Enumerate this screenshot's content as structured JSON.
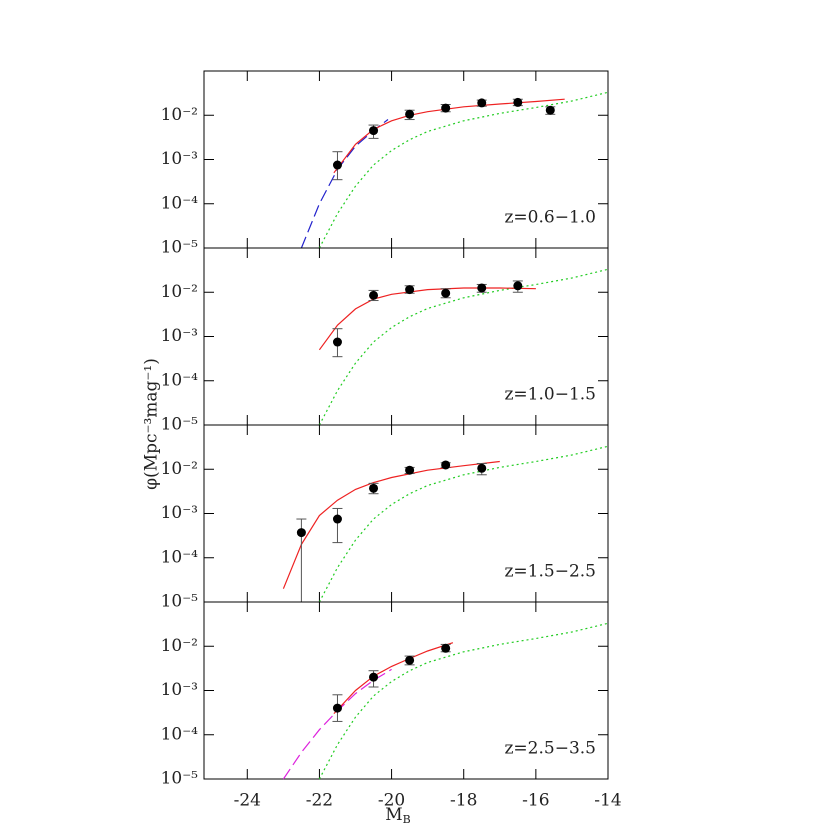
{
  "shared": {
    "ylabel": "φ(Mpc⁻³mag⁻¹)",
    "xlabel": {
      "text": "M",
      "subscript": "B"
    }
  },
  "chart_data": [
    {
      "type": "scatter",
      "annotation": "z=0.6−1.0",
      "yscale": "log",
      "xlim": [
        -25.2,
        -14
      ],
      "ylim": [
        1e-05,
        0.1
      ],
      "xticks": [
        -24,
        -22,
        -20,
        -18,
        -16,
        -14
      ],
      "show_xtick_labels": false,
      "yticks": [
        {
          "value": 1e-05,
          "label": "10⁻⁵"
        },
        {
          "value": 0.0001,
          "label": "10⁻⁴"
        },
        {
          "value": 0.001,
          "label": "10⁻³"
        },
        {
          "value": 0.01,
          "label": "10⁻²"
        }
      ],
      "series": [
        {
          "style": "dotted",
          "color": "#22cc22",
          "x": [
            -22,
            -21.5,
            -21,
            -20.5,
            -20,
            -19.5,
            -19,
            -18,
            -17,
            -16,
            -15,
            -14
          ],
          "y": [
            1e-05,
            6e-05,
            0.00025,
            0.00075,
            0.0016,
            0.0028,
            0.0043,
            0.0075,
            0.011,
            0.015,
            0.021,
            0.033
          ]
        },
        {
          "style": "dashed",
          "color": "#2222cc",
          "x": [
            -22.5,
            -22,
            -21.5,
            -21,
            -20.5,
            -20.1
          ],
          "y": [
            1e-05,
            0.0001,
            0.0006,
            0.002,
            0.0045,
            0.008
          ]
        },
        {
          "style": "solid",
          "color": "#ee2222",
          "x": [
            -21.6,
            -21,
            -20.5,
            -20,
            -19.5,
            -19,
            -18,
            -17,
            -16,
            -15.2
          ],
          "y": [
            0.0005,
            0.0022,
            0.0048,
            0.0075,
            0.01,
            0.012,
            0.0155,
            0.018,
            0.0205,
            0.023
          ]
        },
        {
          "style": "points",
          "color": "#000000",
          "x": [
            -21.5,
            -20.5,
            -19.5,
            -18.5,
            -17.5,
            -16.5,
            -15.6
          ],
          "y": [
            0.00075,
            0.0045,
            0.0105,
            0.0145,
            0.019,
            0.0195,
            0.013
          ],
          "ylow": [
            0.00035,
            0.003,
            0.008,
            0.012,
            0.016,
            0.0165,
            0.0105
          ],
          "yhigh": [
            0.0015,
            0.006,
            0.013,
            0.0175,
            0.022,
            0.023,
            0.0155
          ]
        }
      ]
    },
    {
      "type": "scatter",
      "annotation": "z=1.0−1.5",
      "yscale": "log",
      "xlim": [
        -25.2,
        -14
      ],
      "ylim": [
        1e-05,
        0.1
      ],
      "xticks": [
        -24,
        -22,
        -20,
        -18,
        -16,
        -14
      ],
      "show_xtick_labels": false,
      "yticks": [
        {
          "value": 1e-05,
          "label": "10⁻⁵"
        },
        {
          "value": 0.0001,
          "label": "10⁻⁴"
        },
        {
          "value": 0.001,
          "label": "10⁻³"
        },
        {
          "value": 0.01,
          "label": "10⁻²"
        }
      ],
      "series": [
        {
          "style": "dotted",
          "color": "#22cc22",
          "x": [
            -22,
            -21.5,
            -21,
            -20.5,
            -20,
            -19.5,
            -19,
            -18,
            -17,
            -16,
            -15,
            -14
          ],
          "y": [
            1e-05,
            6e-05,
            0.00025,
            0.00075,
            0.0016,
            0.0028,
            0.0043,
            0.0075,
            0.011,
            0.015,
            0.021,
            0.033
          ]
        },
        {
          "style": "solid",
          "color": "#ee2222",
          "x": [
            -22,
            -21.5,
            -21,
            -20.5,
            -20,
            -19,
            -18,
            -17,
            -16
          ],
          "y": [
            0.0005,
            0.0018,
            0.0042,
            0.007,
            0.009,
            0.0115,
            0.0125,
            0.0125,
            0.012
          ]
        },
        {
          "style": "points",
          "color": "#000000",
          "x": [
            -21.5,
            -20.5,
            -19.5,
            -18.5,
            -17.5,
            -16.5
          ],
          "y": [
            0.00075,
            0.0085,
            0.0115,
            0.0095,
            0.0125,
            0.014
          ],
          "ylow": [
            0.00035,
            0.0065,
            0.0095,
            0.0075,
            0.01,
            0.01
          ],
          "yhigh": [
            0.0015,
            0.011,
            0.014,
            0.012,
            0.015,
            0.018
          ]
        }
      ]
    },
    {
      "type": "scatter",
      "annotation": "z=1.5−2.5",
      "yscale": "log",
      "xlim": [
        -25.2,
        -14
      ],
      "ylim": [
        1e-05,
        0.1
      ],
      "xticks": [
        -24,
        -22,
        -20,
        -18,
        -16,
        -14
      ],
      "show_xtick_labels": false,
      "yticks": [
        {
          "value": 1e-05,
          "label": "10⁻⁵"
        },
        {
          "value": 0.0001,
          "label": "10⁻⁴"
        },
        {
          "value": 0.001,
          "label": "10⁻³"
        },
        {
          "value": 0.01,
          "label": "10⁻²"
        }
      ],
      "series": [
        {
          "style": "dotted",
          "color": "#22cc22",
          "x": [
            -22,
            -21.5,
            -21,
            -20.5,
            -20,
            -19.5,
            -19,
            -18,
            -17,
            -16,
            -15,
            -14
          ],
          "y": [
            1e-05,
            6e-05,
            0.00025,
            0.00075,
            0.0016,
            0.0028,
            0.0043,
            0.0075,
            0.011,
            0.015,
            0.021,
            0.033
          ]
        },
        {
          "style": "solid",
          "color": "#ee2222",
          "x": [
            -23,
            -22.5,
            -22,
            -21.5,
            -21,
            -20.5,
            -20,
            -19,
            -18,
            -17
          ],
          "y": [
            2e-05,
            0.0002,
            0.0009,
            0.002,
            0.0035,
            0.005,
            0.0065,
            0.0095,
            0.012,
            0.015
          ]
        },
        {
          "style": "points",
          "color": "#000000",
          "x": [
            -22.5,
            -21.5,
            -20.5,
            -19.5,
            -18.5,
            -17.5
          ],
          "y": [
            0.00037,
            0.00075,
            0.0037,
            0.0095,
            0.0125,
            0.0105
          ],
          "ylow": [
            1e-05,
            0.00022,
            0.0028,
            0.008,
            0.011,
            0.0075
          ],
          "yhigh": [
            0.00075,
            0.0013,
            0.0048,
            0.011,
            0.014,
            0.0135
          ]
        }
      ]
    },
    {
      "type": "scatter",
      "annotation": "z=2.5−3.5",
      "yscale": "log",
      "xlim": [
        -25.2,
        -14
      ],
      "ylim": [
        1e-05,
        0.1
      ],
      "xticks": [
        -24,
        -22,
        -20,
        -18,
        -16,
        -14
      ],
      "show_xtick_labels": true,
      "yticks": [
        {
          "value": 1e-05,
          "label": "10⁻⁵"
        },
        {
          "value": 0.0001,
          "label": "10⁻⁴"
        },
        {
          "value": 0.001,
          "label": "10⁻³"
        },
        {
          "value": 0.01,
          "label": "10⁻²"
        }
      ],
      "series": [
        {
          "style": "dotted",
          "color": "#22cc22",
          "x": [
            -22,
            -21.5,
            -21,
            -20.5,
            -20,
            -19.5,
            -19,
            -18,
            -17,
            -16,
            -15,
            -14
          ],
          "y": [
            1e-05,
            6e-05,
            0.00025,
            0.00075,
            0.0016,
            0.0028,
            0.0043,
            0.0075,
            0.011,
            0.015,
            0.021,
            0.033
          ]
        },
        {
          "style": "dashed",
          "color": "#dd22dd",
          "x": [
            -23,
            -22.5,
            -22,
            -21.5,
            -21,
            -20.5,
            -20
          ],
          "y": [
            1e-05,
            4e-05,
            0.00013,
            0.00035,
            0.00085,
            0.0017,
            0.003
          ]
        },
        {
          "style": "solid",
          "color": "#ee2222",
          "x": [
            -21.6,
            -21,
            -20.5,
            -20,
            -19.5,
            -19,
            -18.3
          ],
          "y": [
            0.0003,
            0.001,
            0.0021,
            0.0035,
            0.0053,
            0.0078,
            0.012
          ]
        },
        {
          "style": "points",
          "color": "#000000",
          "x": [
            -21.5,
            -20.5,
            -19.5,
            -18.5
          ],
          "y": [
            0.0004,
            0.002,
            0.0048,
            0.009
          ],
          "ylow": [
            0.0002,
            0.0012,
            0.0038,
            0.0075
          ],
          "yhigh": [
            0.0008,
            0.0028,
            0.006,
            0.011
          ]
        }
      ]
    }
  ]
}
